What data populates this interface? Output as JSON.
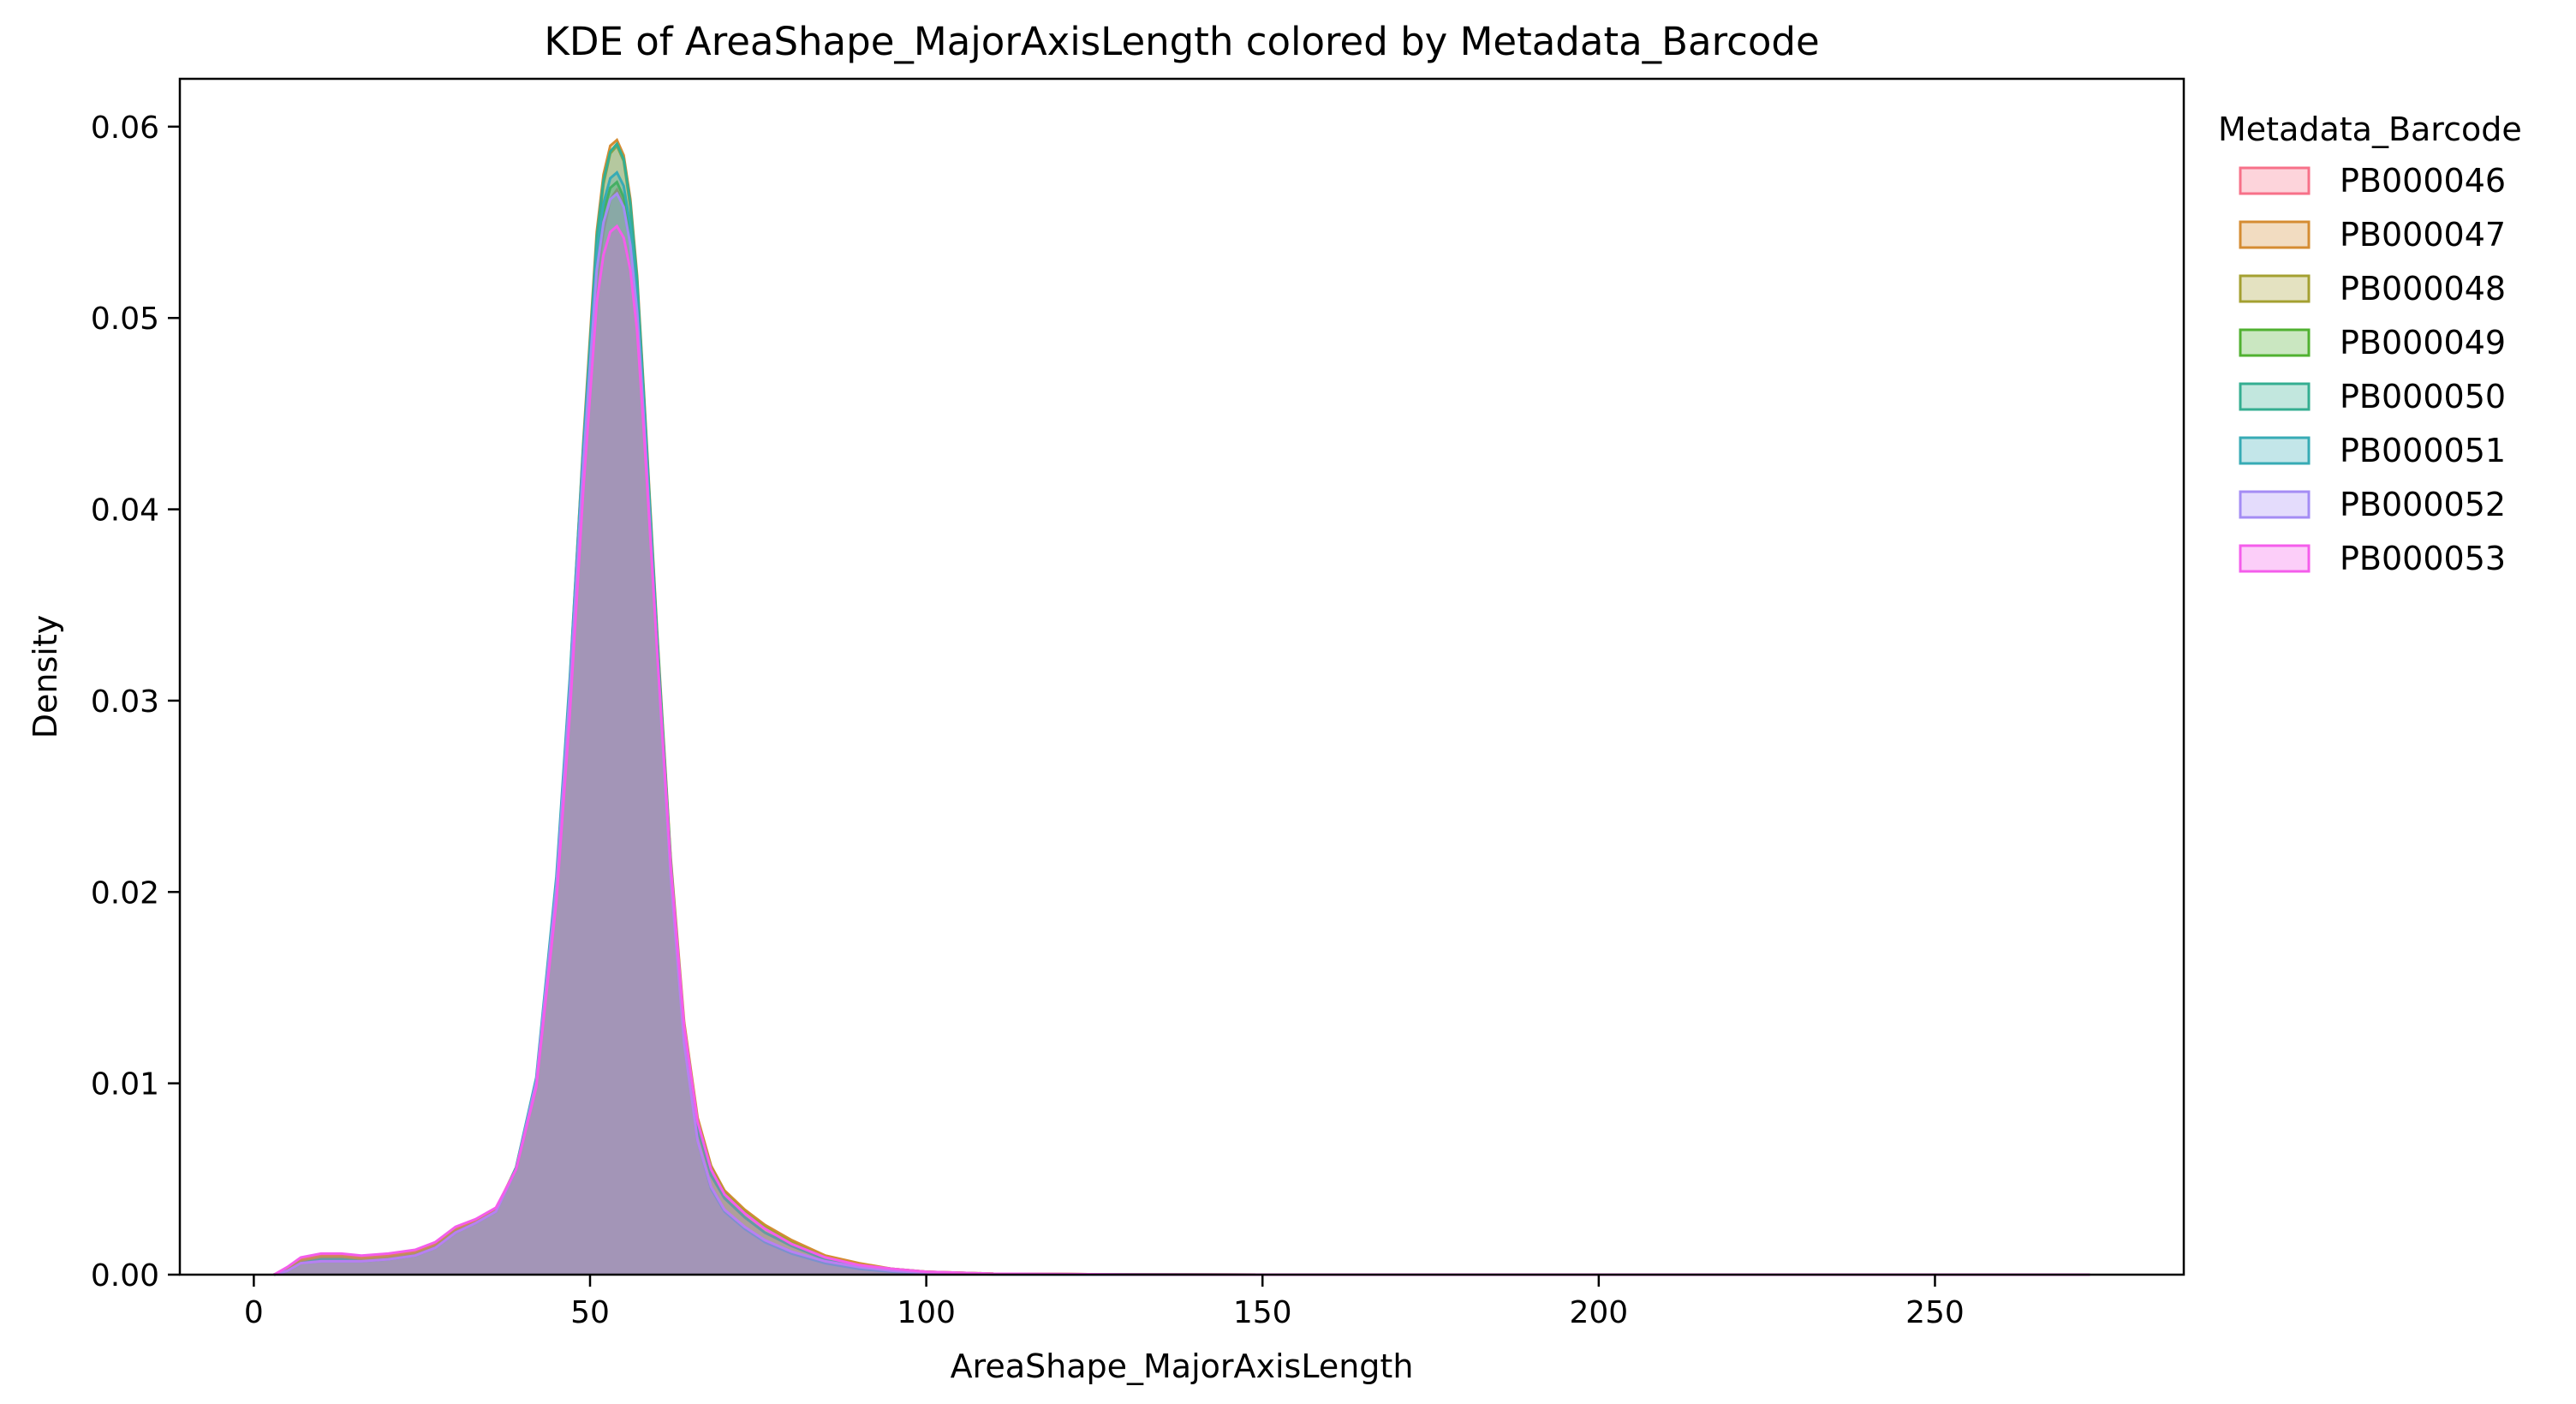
{
  "chart_data": {
    "type": "area",
    "title": "KDE of AreaShape_MajorAxisLength colored by Metadata_Barcode",
    "xlabel": "AreaShape_MajorAxisLength",
    "ylabel": "Density",
    "xlim": [
      -11,
      287
    ],
    "ylim": [
      0,
      0.0625
    ],
    "xticks": [
      0,
      50,
      100,
      150,
      200,
      250
    ],
    "xtick_labels": [
      "0",
      "50",
      "100",
      "150",
      "200",
      "250"
    ],
    "yticks": [
      0,
      0.01,
      0.02,
      0.03,
      0.04,
      0.05,
      0.06
    ],
    "ytick_labels": [
      "0.00",
      "0.01",
      "0.02",
      "0.03",
      "0.04",
      "0.05",
      "0.06"
    ],
    "grid": false,
    "legend": {
      "title": "Metadata_Barcode",
      "position": "outside-right-top"
    },
    "x": [
      3,
      5,
      7,
      10,
      13,
      16,
      20,
      24,
      27,
      30,
      33,
      36,
      39,
      42,
      45,
      47,
      49,
      51,
      52,
      53,
      54,
      55,
      56,
      57,
      58,
      59,
      60,
      62,
      64,
      66,
      68,
      70,
      73,
      76,
      80,
      85,
      90,
      95,
      100,
      105,
      110,
      120,
      130,
      150,
      200,
      250,
      273
    ],
    "series": [
      {
        "name": "PB000046",
        "color": "#f77189",
        "values": [
          0,
          0.0003,
          0.0008,
          0.001,
          0.001,
          0.0009,
          0.001,
          0.0012,
          0.0016,
          0.0024,
          0.0028,
          0.0034,
          0.0055,
          0.01,
          0.02,
          0.03,
          0.042,
          0.052,
          0.0545,
          0.0562,
          0.0567,
          0.056,
          0.054,
          0.0505,
          0.045,
          0.039,
          0.033,
          0.0215,
          0.013,
          0.008,
          0.0055,
          0.0042,
          0.0032,
          0.0024,
          0.0016,
          0.0009,
          0.0005,
          0.0003,
          0.00015,
          0.0001,
          5e-05,
          3e-05,
          1e-05,
          0,
          0,
          0,
          0
        ]
      },
      {
        "name": "PB000047",
        "color": "#d58c32",
        "values": [
          0,
          0.0003,
          0.0008,
          0.001,
          0.001,
          0.0009,
          0.001,
          0.0012,
          0.0016,
          0.0024,
          0.0028,
          0.0034,
          0.0056,
          0.0102,
          0.0205,
          0.031,
          0.0435,
          0.0545,
          0.0575,
          0.059,
          0.0593,
          0.0585,
          0.0562,
          0.0522,
          0.0462,
          0.0398,
          0.0335,
          0.0218,
          0.0132,
          0.0082,
          0.0057,
          0.0044,
          0.0034,
          0.0026,
          0.0018,
          0.001,
          0.0006,
          0.0003,
          0.00015,
          0.0001,
          5e-05,
          3e-05,
          1e-05,
          0,
          0,
          0,
          0
        ]
      },
      {
        "name": "PB000048",
        "color": "#a4a031",
        "values": [
          0,
          0.0003,
          0.0007,
          0.0009,
          0.0009,
          0.0008,
          0.0009,
          0.0011,
          0.0015,
          0.0023,
          0.0027,
          0.0033,
          0.0055,
          0.0101,
          0.0203,
          0.0307,
          0.043,
          0.054,
          0.057,
          0.0586,
          0.059,
          0.0582,
          0.0558,
          0.0518,
          0.0458,
          0.0395,
          0.0332,
          0.0216,
          0.013,
          0.008,
          0.0056,
          0.0043,
          0.0033,
          0.0025,
          0.0017,
          0.0009,
          0.0005,
          0.0003,
          0.00015,
          0.0001,
          5e-05,
          3e-05,
          1e-05,
          0,
          0,
          0,
          0
        ]
      },
      {
        "name": "PB000049",
        "color": "#50b131",
        "values": [
          0,
          0.0002,
          0.0006,
          0.0008,
          0.0008,
          0.0007,
          0.0008,
          0.001,
          0.0014,
          0.0022,
          0.0027,
          0.0033,
          0.0055,
          0.01,
          0.02,
          0.0303,
          0.0424,
          0.0528,
          0.0555,
          0.0568,
          0.0571,
          0.0563,
          0.0541,
          0.0504,
          0.0448,
          0.0388,
          0.0327,
          0.0212,
          0.0126,
          0.0076,
          0.0052,
          0.004,
          0.003,
          0.0022,
          0.0015,
          0.0008,
          0.0004,
          0.0002,
          0.0001,
          6e-05,
          3e-05,
          2e-05,
          1e-05,
          0,
          0,
          0,
          0
        ]
      },
      {
        "name": "PB000050",
        "color": "#34ae91",
        "values": [
          0,
          0.0002,
          0.0006,
          0.0008,
          0.0008,
          0.0007,
          0.0008,
          0.001,
          0.0014,
          0.0022,
          0.0027,
          0.0033,
          0.0055,
          0.0101,
          0.0204,
          0.0308,
          0.0432,
          0.0542,
          0.0572,
          0.0587,
          0.0591,
          0.0583,
          0.056,
          0.052,
          0.046,
          0.0396,
          0.0333,
          0.0216,
          0.0128,
          0.0077,
          0.0052,
          0.004,
          0.003,
          0.0022,
          0.0015,
          0.0008,
          0.0004,
          0.0002,
          0.0001,
          6e-05,
          3e-05,
          2e-05,
          1e-05,
          0,
          0,
          0,
          0
        ]
      },
      {
        "name": "PB000051",
        "color": "#37abb5",
        "values": [
          0,
          0.0002,
          0.0006,
          0.0007,
          0.0007,
          0.0007,
          0.0008,
          0.001,
          0.0014,
          0.0022,
          0.0027,
          0.0033,
          0.0056,
          0.0103,
          0.0208,
          0.0312,
          0.0433,
          0.0535,
          0.056,
          0.0573,
          0.0576,
          0.0569,
          0.0548,
          0.0512,
          0.0455,
          0.0392,
          0.0328,
          0.021,
          0.0122,
          0.007,
          0.0045,
          0.0033,
          0.0024,
          0.0017,
          0.0011,
          0.0006,
          0.0003,
          0.00015,
          8e-05,
          4e-05,
          2e-05,
          1e-05,
          0,
          0,
          0,
          0,
          0
        ]
      },
      {
        "name": "PB000052",
        "color": "#a48cf4",
        "values": [
          0,
          0.0002,
          0.0006,
          0.0007,
          0.0007,
          0.0007,
          0.0008,
          0.001,
          0.0014,
          0.0022,
          0.0027,
          0.0033,
          0.0055,
          0.0101,
          0.0203,
          0.0305,
          0.0424,
          0.0525,
          0.055,
          0.0562,
          0.0565,
          0.0558,
          0.0538,
          0.0503,
          0.0448,
          0.0386,
          0.0324,
          0.0208,
          0.0121,
          0.007,
          0.0046,
          0.0034,
          0.0025,
          0.0018,
          0.0012,
          0.0007,
          0.0004,
          0.0002,
          0.0001,
          5e-05,
          2e-05,
          1e-05,
          0,
          0,
          0,
          0,
          0
        ]
      },
      {
        "name": "PB000053",
        "color": "#f45deb",
        "values": [
          0,
          0.0004,
          0.0009,
          0.0011,
          0.0011,
          0.001,
          0.0011,
          0.0013,
          0.0017,
          0.0025,
          0.0029,
          0.0035,
          0.0055,
          0.0098,
          0.0195,
          0.0293,
          0.041,
          0.0508,
          0.0533,
          0.0545,
          0.0548,
          0.0542,
          0.0525,
          0.0493,
          0.0441,
          0.0383,
          0.0325,
          0.0214,
          0.013,
          0.008,
          0.0055,
          0.0042,
          0.0032,
          0.0024,
          0.0016,
          0.0009,
          0.0005,
          0.0003,
          0.00015,
          0.0001,
          5e-05,
          3e-05,
          1e-05,
          0,
          0,
          0,
          0
        ]
      }
    ]
  }
}
